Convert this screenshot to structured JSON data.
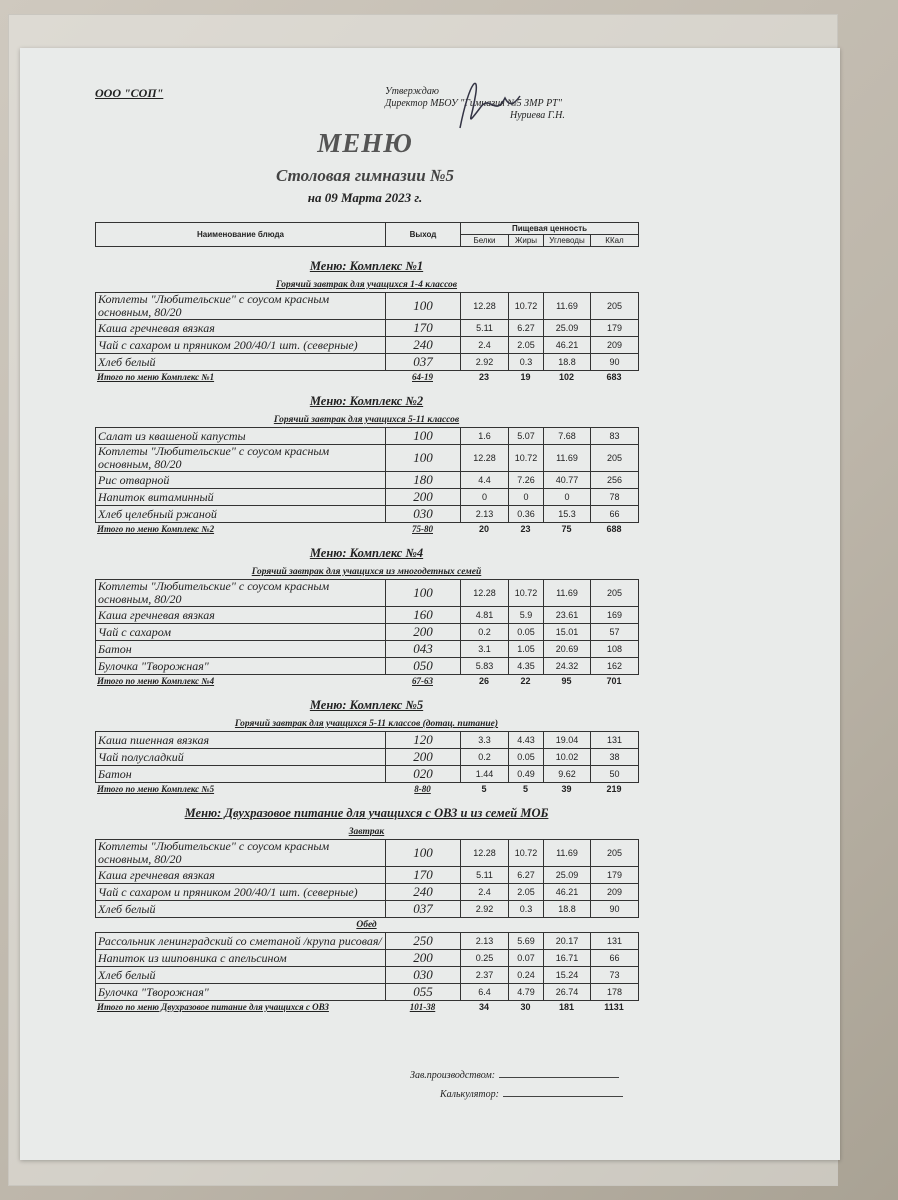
{
  "header": {
    "org": "ООО \"СОП\"",
    "approve": "Утверждаю",
    "director": "Директор МБОУ \"Гимназия №5 ЗМР РТ\"",
    "signer": "Нуриева Г.Н.",
    "title": "МЕНЮ",
    "subtitle": "Столовая гимназии №5",
    "date": "на 09 Марта 2023 г."
  },
  "columns": {
    "name": "Наименование блюда",
    "output": "Выход",
    "nutrition": "Пищевая ценность",
    "protein": "Белки",
    "fat": "Жиры",
    "carbs": "Углеводы",
    "kcal": "ККал"
  },
  "sections": [
    {
      "title": "Меню: Комплекс №1",
      "groups": [
        {
          "subtitle": "Горячий завтрак для учащихся 1-4 классов",
          "rows": [
            [
              "Котлеты  \"Любительские\" с соусом красным основным, 80/20",
              "100",
              "12.28",
              "10.72",
              "11.69",
              "205"
            ],
            [
              "Каша гречневая вязкая",
              "170",
              "5.11",
              "6.27",
              "25.09",
              "179"
            ],
            [
              "Чай с сахаром и пряником 200/40/1 шт. (северные)",
              "240",
              "2.4",
              "2.05",
              "46.21",
              "209"
            ],
            [
              "Хлеб белый",
              "037",
              "2.92",
              "0.3",
              "18.8",
              "90"
            ]
          ]
        }
      ],
      "total": [
        "Итого по меню Комплекс №1",
        "64-19",
        "23",
        "19",
        "102",
        "683"
      ]
    },
    {
      "title": "Меню: Комплекс №2",
      "groups": [
        {
          "subtitle": "Горячий завтрак для учащихся 5-11 классов",
          "rows": [
            [
              "Салат из квашеной капусты",
              "100",
              "1.6",
              "5.07",
              "7.68",
              "83"
            ],
            [
              "Котлеты  \"Любительские\" с соусом красным основным, 80/20",
              "100",
              "12.28",
              "10.72",
              "11.69",
              "205"
            ],
            [
              "Рис отварной",
              "180",
              "4.4",
              "7.26",
              "40.77",
              "256"
            ],
            [
              "Напиток витаминный",
              "200",
              "0",
              "0",
              "0",
              "78"
            ],
            [
              "Хлеб  целебный ржаной",
              "030",
              "2.13",
              "0.36",
              "15.3",
              "66"
            ]
          ]
        }
      ],
      "total": [
        "Итого по меню Комплекс №2",
        "75-80",
        "20",
        "23",
        "75",
        "688"
      ]
    },
    {
      "title": "Меню: Комплекс №4",
      "groups": [
        {
          "subtitle": "Горячий завтрак для учащихся из многодетных семей",
          "rows": [
            [
              "Котлеты  \"Любительские\" с соусом красным основным, 80/20",
              "100",
              "12.28",
              "10.72",
              "11.69",
              "205"
            ],
            [
              "Каша гречневая вязкая",
              "160",
              "4.81",
              "5.9",
              "23.61",
              "169"
            ],
            [
              "Чай с сахаром",
              "200",
              "0.2",
              "0.05",
              "15.01",
              "57"
            ],
            [
              "Батон",
              "043",
              "3.1",
              "1.05",
              "20.69",
              "108"
            ],
            [
              "Булочка \"Творожная\"",
              "050",
              "5.83",
              "4.35",
              "24.32",
              "162"
            ]
          ]
        }
      ],
      "total": [
        "Итого по меню Комплекс №4",
        "67-63",
        "26",
        "22",
        "95",
        "701"
      ]
    },
    {
      "title": "Меню: Комплекс №5",
      "groups": [
        {
          "subtitle": "Горячий завтрак для учащихся 5-11 классов (дотац. питание)",
          "rows": [
            [
              "Каша пшенная вязкая",
              "120",
              "3.3",
              "4.43",
              "19.04",
              "131"
            ],
            [
              "Чай полусладкий",
              "200",
              "0.2",
              "0.05",
              "10.02",
              "38"
            ],
            [
              "Батон",
              "020",
              "1.44",
              "0.49",
              "9.62",
              "50"
            ]
          ]
        }
      ],
      "total": [
        "Итого по меню Комплекс №5",
        "8-80",
        "5",
        "5",
        "39",
        "219"
      ]
    },
    {
      "title": "Меню: Двухразовое питание для учащихся с ОВЗ и из семей МОБ",
      "groups": [
        {
          "subtitle": "Завтрак",
          "rows": [
            [
              "Котлеты  \"Любительские\" с соусом красным основным, 80/20",
              "100",
              "12.28",
              "10.72",
              "11.69",
              "205"
            ],
            [
              "Каша гречневая вязкая",
              "170",
              "5.11",
              "6.27",
              "25.09",
              "179"
            ],
            [
              "Чай с сахаром и пряником 200/40/1 шт. (северные)",
              "240",
              "2.4",
              "2.05",
              "46.21",
              "209"
            ],
            [
              "Хлеб белый",
              "037",
              "2.92",
              "0.3",
              "18.8",
              "90"
            ]
          ]
        },
        {
          "subtitle": "Обед",
          "rows": [
            [
              "Рассольник ленинградский со сметаной /крупа рисовая/",
              "250",
              "2.13",
              "5.69",
              "20.17",
              "131"
            ],
            [
              "Напиток из шиповника с апельсином",
              "200",
              "0.25",
              "0.07",
              "16.71",
              "66"
            ],
            [
              "Хлеб белый",
              "030",
              "2.37",
              "0.24",
              "15.24",
              "73"
            ],
            [
              "Булочка \"Творожная\"",
              "055",
              "6.4",
              "4.79",
              "26.74",
              "178"
            ]
          ]
        }
      ],
      "total": [
        "Итого по меню Двухразовое питание для учащихся с ОВЗ",
        "101-38",
        "34",
        "30",
        "181",
        "1131"
      ]
    }
  ],
  "footer": {
    "production": "Зав.производством:",
    "calculator": "Калькулятор:"
  }
}
